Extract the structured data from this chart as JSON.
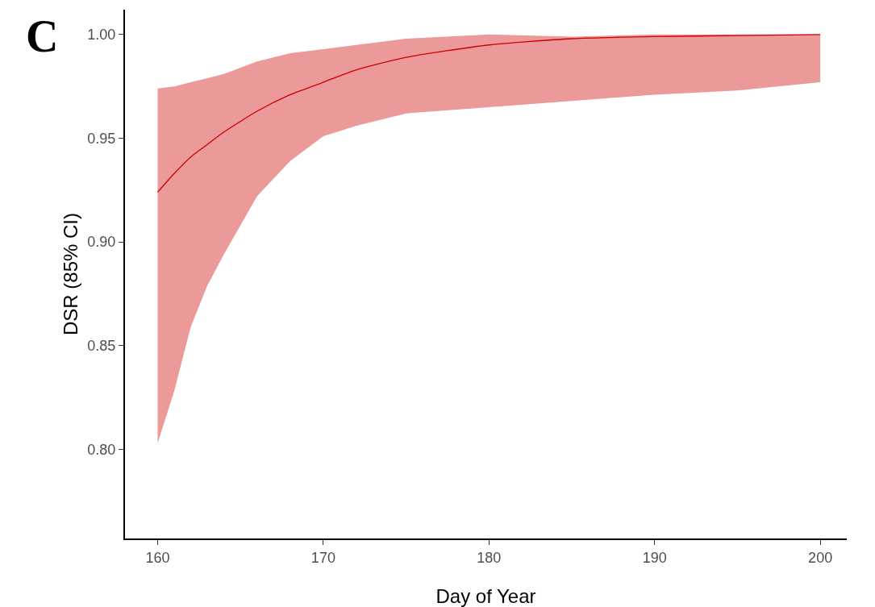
{
  "chart_data": {
    "type": "line",
    "xlabel": "Day of Year",
    "ylabel": "DSR (85% CI)",
    "annotations": [
      "C"
    ],
    "x": [
      160,
      161,
      162,
      163,
      164,
      166,
      168,
      170,
      172,
      175,
      180,
      185,
      190,
      195,
      200
    ],
    "series": [
      {
        "color": "#cc0000",
        "values": [
          0.924,
          0.933,
          0.941,
          0.947,
          0.953,
          0.963,
          0.971,
          0.977,
          0.983,
          0.989,
          0.995,
          0.998,
          0.999,
          0.9995,
          1.0
        ],
        "lower": [
          0.803,
          0.828,
          0.859,
          0.879,
          0.894,
          0.922,
          0.939,
          0.951,
          0.956,
          0.962,
          0.965,
          0.968,
          0.971,
          0.973,
          0.977
        ],
        "upper": [
          0.974,
          0.975,
          0.977,
          0.979,
          0.981,
          0.987,
          0.991,
          0.993,
          0.995,
          0.998,
          1.0,
          0.999,
          1.0,
          1.0,
          1.0
        ]
      }
    ],
    "xlim": [
      158.03,
      201.6
    ],
    "ylim": [
      0.757,
      1.012
    ],
    "xticks": [
      160,
      170,
      180,
      190,
      200
    ],
    "yticks": [
      {
        "value": 0.8,
        "label": "0.80"
      },
      {
        "value": 0.85,
        "label": "0.85"
      },
      {
        "value": 0.9,
        "label": "0.90"
      },
      {
        "value": 0.95,
        "label": "0.95"
      },
      {
        "value": 1.0,
        "label": "1.00"
      }
    ],
    "grid": false,
    "marker": "none",
    "line_style": "solid"
  }
}
